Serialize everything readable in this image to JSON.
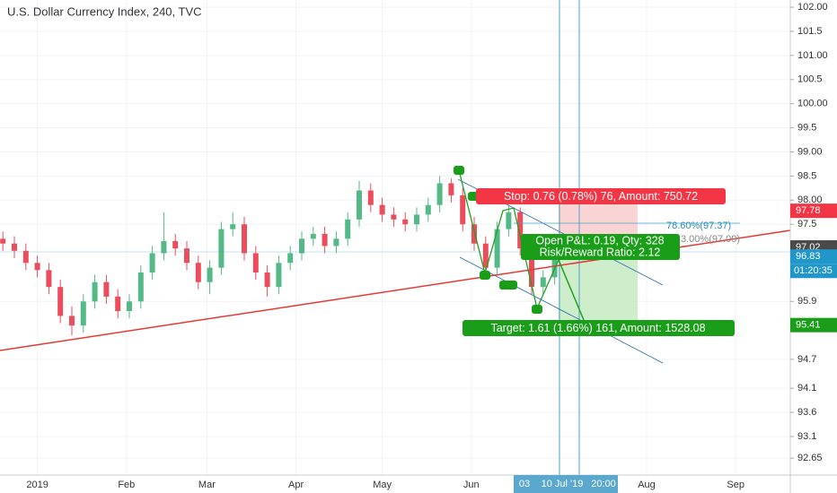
{
  "chart_data": {
    "type": "candlestick",
    "title": "U.S. Dollar Currency Index, 240, TVC",
    "x": [
      -12,
      -8,
      -4,
      0,
      4,
      8,
      12,
      16,
      20,
      24,
      28,
      32,
      36,
      40,
      44,
      48,
      52,
      56,
      60,
      64,
      68,
      72,
      76,
      80,
      84,
      88,
      92,
      96,
      100,
      104,
      108,
      112,
      116,
      120,
      124,
      128,
      132,
      136,
      140,
      144,
      148,
      152,
      156,
      160,
      164,
      168,
      172,
      176,
      180
    ],
    "open": [
      97.2,
      97.1,
      96.95,
      96.7,
      96.55,
      96.2,
      95.6,
      95.4,
      95.9,
      96.3,
      96.0,
      95.7,
      95.9,
      96.5,
      96.9,
      97.15,
      97.0,
      96.7,
      96.3,
      96.6,
      97.4,
      97.5,
      96.9,
      96.5,
      96.2,
      96.7,
      96.9,
      97.2,
      97.3,
      97.05,
      97.2,
      97.6,
      98.2,
      97.9,
      97.7,
      97.6,
      97.5,
      97.7,
      97.9,
      98.35,
      98.1,
      97.5,
      97.1,
      96.6,
      97.4,
      97.75,
      97.0,
      96.2,
      96.4
    ],
    "high": [
      97.35,
      97.25,
      97.1,
      96.85,
      96.7,
      96.35,
      95.8,
      96.05,
      96.45,
      96.45,
      96.15,
      96.05,
      96.65,
      97.05,
      97.75,
      97.3,
      97.15,
      96.85,
      96.75,
      97.55,
      97.75,
      97.65,
      97.05,
      96.65,
      96.85,
      97.05,
      97.35,
      97.45,
      97.45,
      97.35,
      97.75,
      98.4,
      98.35,
      98.05,
      97.85,
      97.75,
      97.85,
      98.05,
      98.5,
      98.45,
      98.25,
      97.65,
      97.25,
      97.55,
      97.9,
      97.85,
      97.15,
      96.55,
      96.95
    ],
    "low": [
      96.95,
      96.8,
      96.55,
      96.4,
      96.05,
      95.45,
      95.2,
      95.25,
      95.75,
      95.85,
      95.55,
      95.55,
      95.75,
      96.35,
      96.75,
      96.85,
      96.55,
      96.15,
      96.05,
      96.45,
      97.25,
      96.75,
      96.35,
      96.0,
      96.05,
      96.55,
      96.75,
      97.05,
      96.9,
      96.9,
      97.05,
      97.45,
      97.75,
      97.55,
      97.45,
      97.35,
      97.35,
      97.55,
      97.75,
      97.95,
      97.35,
      96.95,
      96.45,
      96.45,
      97.25,
      96.85,
      96.05,
      96.05,
      96.25
    ],
    "close": [
      97.1,
      96.95,
      96.7,
      96.55,
      96.2,
      95.6,
      95.4,
      95.9,
      96.3,
      96.0,
      95.7,
      95.9,
      96.5,
      96.9,
      97.15,
      97.0,
      96.7,
      96.3,
      96.6,
      97.4,
      97.5,
      96.9,
      96.5,
      96.2,
      96.7,
      96.9,
      97.2,
      97.3,
      97.05,
      97.2,
      97.6,
      98.2,
      97.9,
      97.7,
      97.6,
      97.5,
      97.7,
      97.9,
      98.35,
      98.1,
      97.5,
      97.1,
      96.6,
      97.4,
      97.75,
      97.0,
      96.2,
      96.4,
      96.85
    ],
    "up_color": "#53b987",
    "down_color": "#eb4d5c",
    "xlim": [
      -13,
      262
    ],
    "xticks": [
      {
        "value": 0,
        "label": "2019"
      },
      {
        "value": 31,
        "label": "Feb"
      },
      {
        "value": 59,
        "label": "Mar"
      },
      {
        "value": 90,
        "label": "Apr"
      },
      {
        "value": 120,
        "label": "May"
      },
      {
        "value": 151,
        "label": "Jun"
      },
      {
        "value": 212,
        "label": "Aug"
      },
      {
        "value": 243,
        "label": "Sep"
      }
    ],
    "highlighted_xticks": [
      "03",
      "10 Jul '19",
      "20:00"
    ],
    "ylim": [
      92.3,
      102.15
    ],
    "yticks": [
      {
        "value": 102,
        "label": "102.00"
      },
      101.5,
      {
        "value": 101,
        "label": "101.00"
      },
      100.5,
      {
        "value": 100,
        "label": "100.00"
      },
      99.5,
      {
        "value": 99,
        "label": "99.00"
      },
      98.5,
      {
        "value": 98,
        "label": "98.00"
      },
      97.5,
      95.9,
      94.7,
      94.1,
      93.6,
      93.1,
      92.65
    ],
    "price_badges": [
      {
        "value": 97.78,
        "label": "97.78",
        "color": "#f23645"
      },
      {
        "value": 97.02,
        "label": "97.02",
        "color": "#4a4a4a"
      },
      {
        "value": 96.83,
        "label": "96.83",
        "color": "#2196c8"
      },
      {
        "value": 95.41,
        "label": "95.41",
        "color": "#1a9e1a"
      }
    ],
    "countdown": "01:20:35",
    "annotations": [
      "Stop: 0.76 (0.78%) 76, Amount: 750.72",
      "Open P&L: 0.19, Qty: 328",
      "Risk/Reward Ratio: 2.12",
      "Target: 1.61 (1.66%) 161, Amount: 1528.08",
      "78.60%(97.37)",
      "3.00%(97.09)"
    ]
  }
}
